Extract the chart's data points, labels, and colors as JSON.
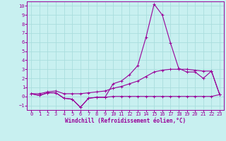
{
  "xlabel": "Windchill (Refroidissement éolien,°C)",
  "xlim": [
    -0.5,
    23.5
  ],
  "ylim": [
    -1.5,
    10.5
  ],
  "xticks": [
    0,
    1,
    2,
    3,
    4,
    5,
    6,
    7,
    8,
    9,
    10,
    11,
    12,
    13,
    14,
    15,
    16,
    17,
    18,
    19,
    20,
    21,
    22,
    23
  ],
  "yticks": [
    -1,
    0,
    1,
    2,
    3,
    4,
    5,
    6,
    7,
    8,
    9,
    10
  ],
  "background_color": "#c8f0f0",
  "line_color": "#990099",
  "grid_color": "#aadddd",
  "line1_x": [
    0,
    1,
    2,
    3,
    4,
    5,
    6,
    7,
    8,
    9,
    10,
    11,
    12,
    13,
    14,
    15,
    16,
    17,
    18,
    19,
    20,
    21,
    22,
    23
  ],
  "line1_y": [
    0.3,
    0.1,
    0.4,
    0.4,
    -0.2,
    -0.3,
    -1.2,
    -0.2,
    -0.1,
    -0.1,
    0.0,
    0.0,
    0.0,
    0.0,
    0.0,
    0.0,
    0.0,
    0.0,
    0.0,
    0.0,
    0.0,
    0.0,
    0.0,
    0.2
  ],
  "line2_x": [
    0,
    1,
    2,
    3,
    4,
    5,
    6,
    7,
    8,
    9,
    10,
    11,
    12,
    13,
    14,
    15,
    16,
    17,
    18,
    19,
    20,
    21,
    22,
    23
  ],
  "line2_y": [
    0.3,
    0.1,
    0.4,
    0.4,
    -0.2,
    -0.3,
    -1.2,
    -0.2,
    -0.1,
    -0.1,
    1.4,
    1.7,
    2.4,
    3.4,
    6.5,
    10.2,
    9.0,
    5.9,
    3.1,
    2.7,
    2.7,
    2.0,
    2.8,
    0.2
  ],
  "line3_x": [
    0,
    1,
    2,
    3,
    4,
    5,
    6,
    7,
    8,
    9,
    10,
    11,
    12,
    13,
    14,
    15,
    16,
    17,
    18,
    19,
    20,
    21,
    22,
    23
  ],
  "line3_y": [
    0.3,
    0.3,
    0.5,
    0.6,
    0.3,
    0.3,
    0.3,
    0.4,
    0.5,
    0.6,
    0.9,
    1.1,
    1.4,
    1.7,
    2.2,
    2.7,
    2.9,
    3.0,
    3.0,
    3.0,
    2.9,
    2.8,
    2.8,
    0.2
  ]
}
